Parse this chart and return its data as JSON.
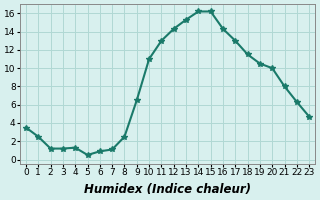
{
  "x": [
    0,
    1,
    2,
    3,
    4,
    5,
    6,
    7,
    8,
    9,
    10,
    11,
    12,
    13,
    14,
    15,
    16,
    17,
    18,
    19,
    20,
    21,
    22,
    23
  ],
  "y": [
    3.5,
    2.5,
    1.2,
    1.2,
    1.3,
    0.5,
    0.9,
    1.1,
    2.5,
    6.5,
    11.0,
    13.0,
    14.3,
    15.3,
    16.2,
    16.2,
    14.3,
    13.0,
    11.5,
    10.5,
    10.0,
    8.0,
    6.3,
    4.7
  ],
  "line_color": "#1a7a6a",
  "marker": "*",
  "marker_size": 4,
  "bg_color": "#d8f0ee",
  "grid_color": "#b0d8d4",
  "xlabel": "Humidex (Indice chaleur)",
  "xlim": [
    -0.5,
    23.5
  ],
  "ylim": [
    -0.5,
    17
  ],
  "yticks": [
    0,
    2,
    4,
    6,
    8,
    10,
    12,
    14,
    16
  ],
  "xticks": [
    0,
    1,
    2,
    3,
    4,
    5,
    6,
    7,
    8,
    9,
    10,
    11,
    12,
    13,
    14,
    15,
    16,
    17,
    18,
    19,
    20,
    21,
    22,
    23
  ],
  "xtick_labels": [
    "0",
    "1",
    "2",
    "3",
    "4",
    "5",
    "6",
    "7",
    "8",
    "9",
    "10",
    "11",
    "12",
    "13",
    "14",
    "15",
    "16",
    "17",
    "18",
    "19",
    "20",
    "21",
    "22",
    "23"
  ],
  "tick_fontsize": 6.5,
  "xlabel_fontsize": 8.5,
  "linewidth": 1.5
}
